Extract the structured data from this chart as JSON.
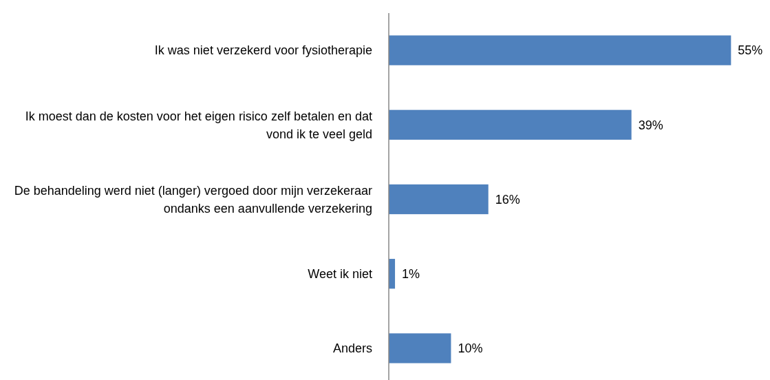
{
  "chart_data": {
    "type": "bar",
    "orientation": "horizontal",
    "categories": [
      "Ik was niet verzekerd voor fysiotherapie",
      "Ik moest dan de kosten voor het eigen risico zelf betalen en dat vond ik te veel geld",
      "De behandeling werd niet (langer) vergoed door mijn verzekeraar ondanks een aanvullende verzekering",
      "Weet ik niet",
      "Anders"
    ],
    "values": [
      55,
      39,
      16,
      1,
      10
    ],
    "value_labels": [
      "55%",
      "39%",
      "16%",
      "1%",
      "10%"
    ],
    "color": "#4f81bd"
  }
}
